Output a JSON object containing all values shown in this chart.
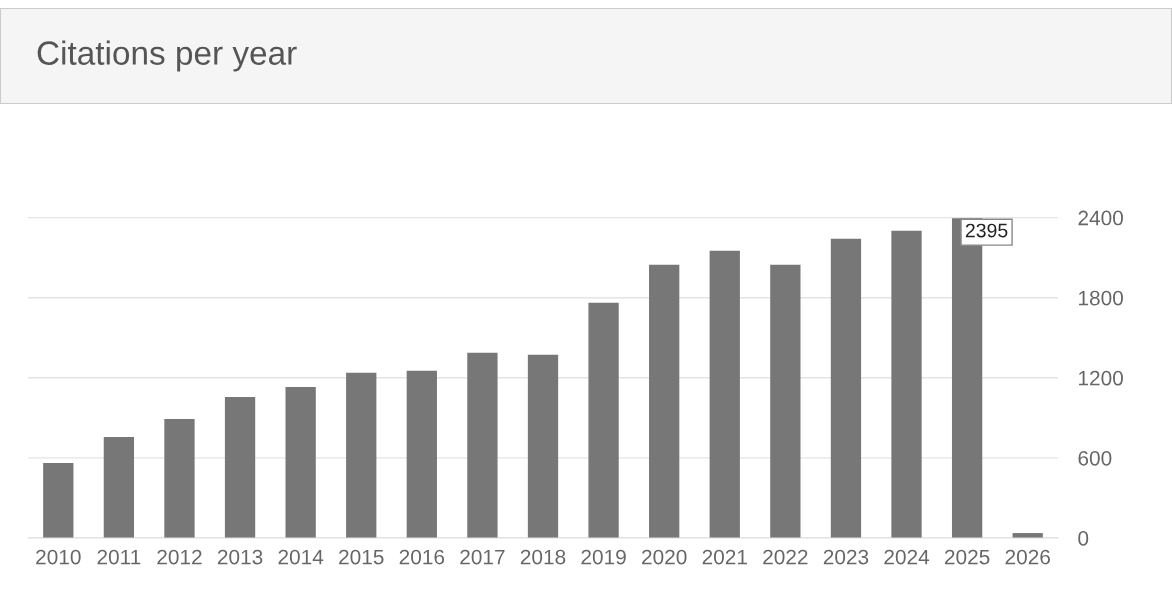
{
  "chart_data": {
    "type": "bar",
    "title": "Citations per year",
    "categories": [
      "2010",
      "2011",
      "2012",
      "2013",
      "2014",
      "2015",
      "2016",
      "2017",
      "2018",
      "2019",
      "2020",
      "2021",
      "2022",
      "2023",
      "2024",
      "2025",
      "2026"
    ],
    "values": [
      562,
      757,
      892,
      1057,
      1132,
      1237,
      1252,
      1387,
      1372,
      1762,
      2047,
      2152,
      2047,
      2242,
      2302,
      2395,
      37
    ],
    "color": "#777777",
    "ylim": [
      0,
      2400
    ],
    "yticks": [
      0,
      600,
      1200,
      1800,
      2400
    ],
    "grid": "y",
    "annotations": [
      {
        "text": "2395",
        "x": "2025",
        "y": 2395
      }
    ]
  }
}
